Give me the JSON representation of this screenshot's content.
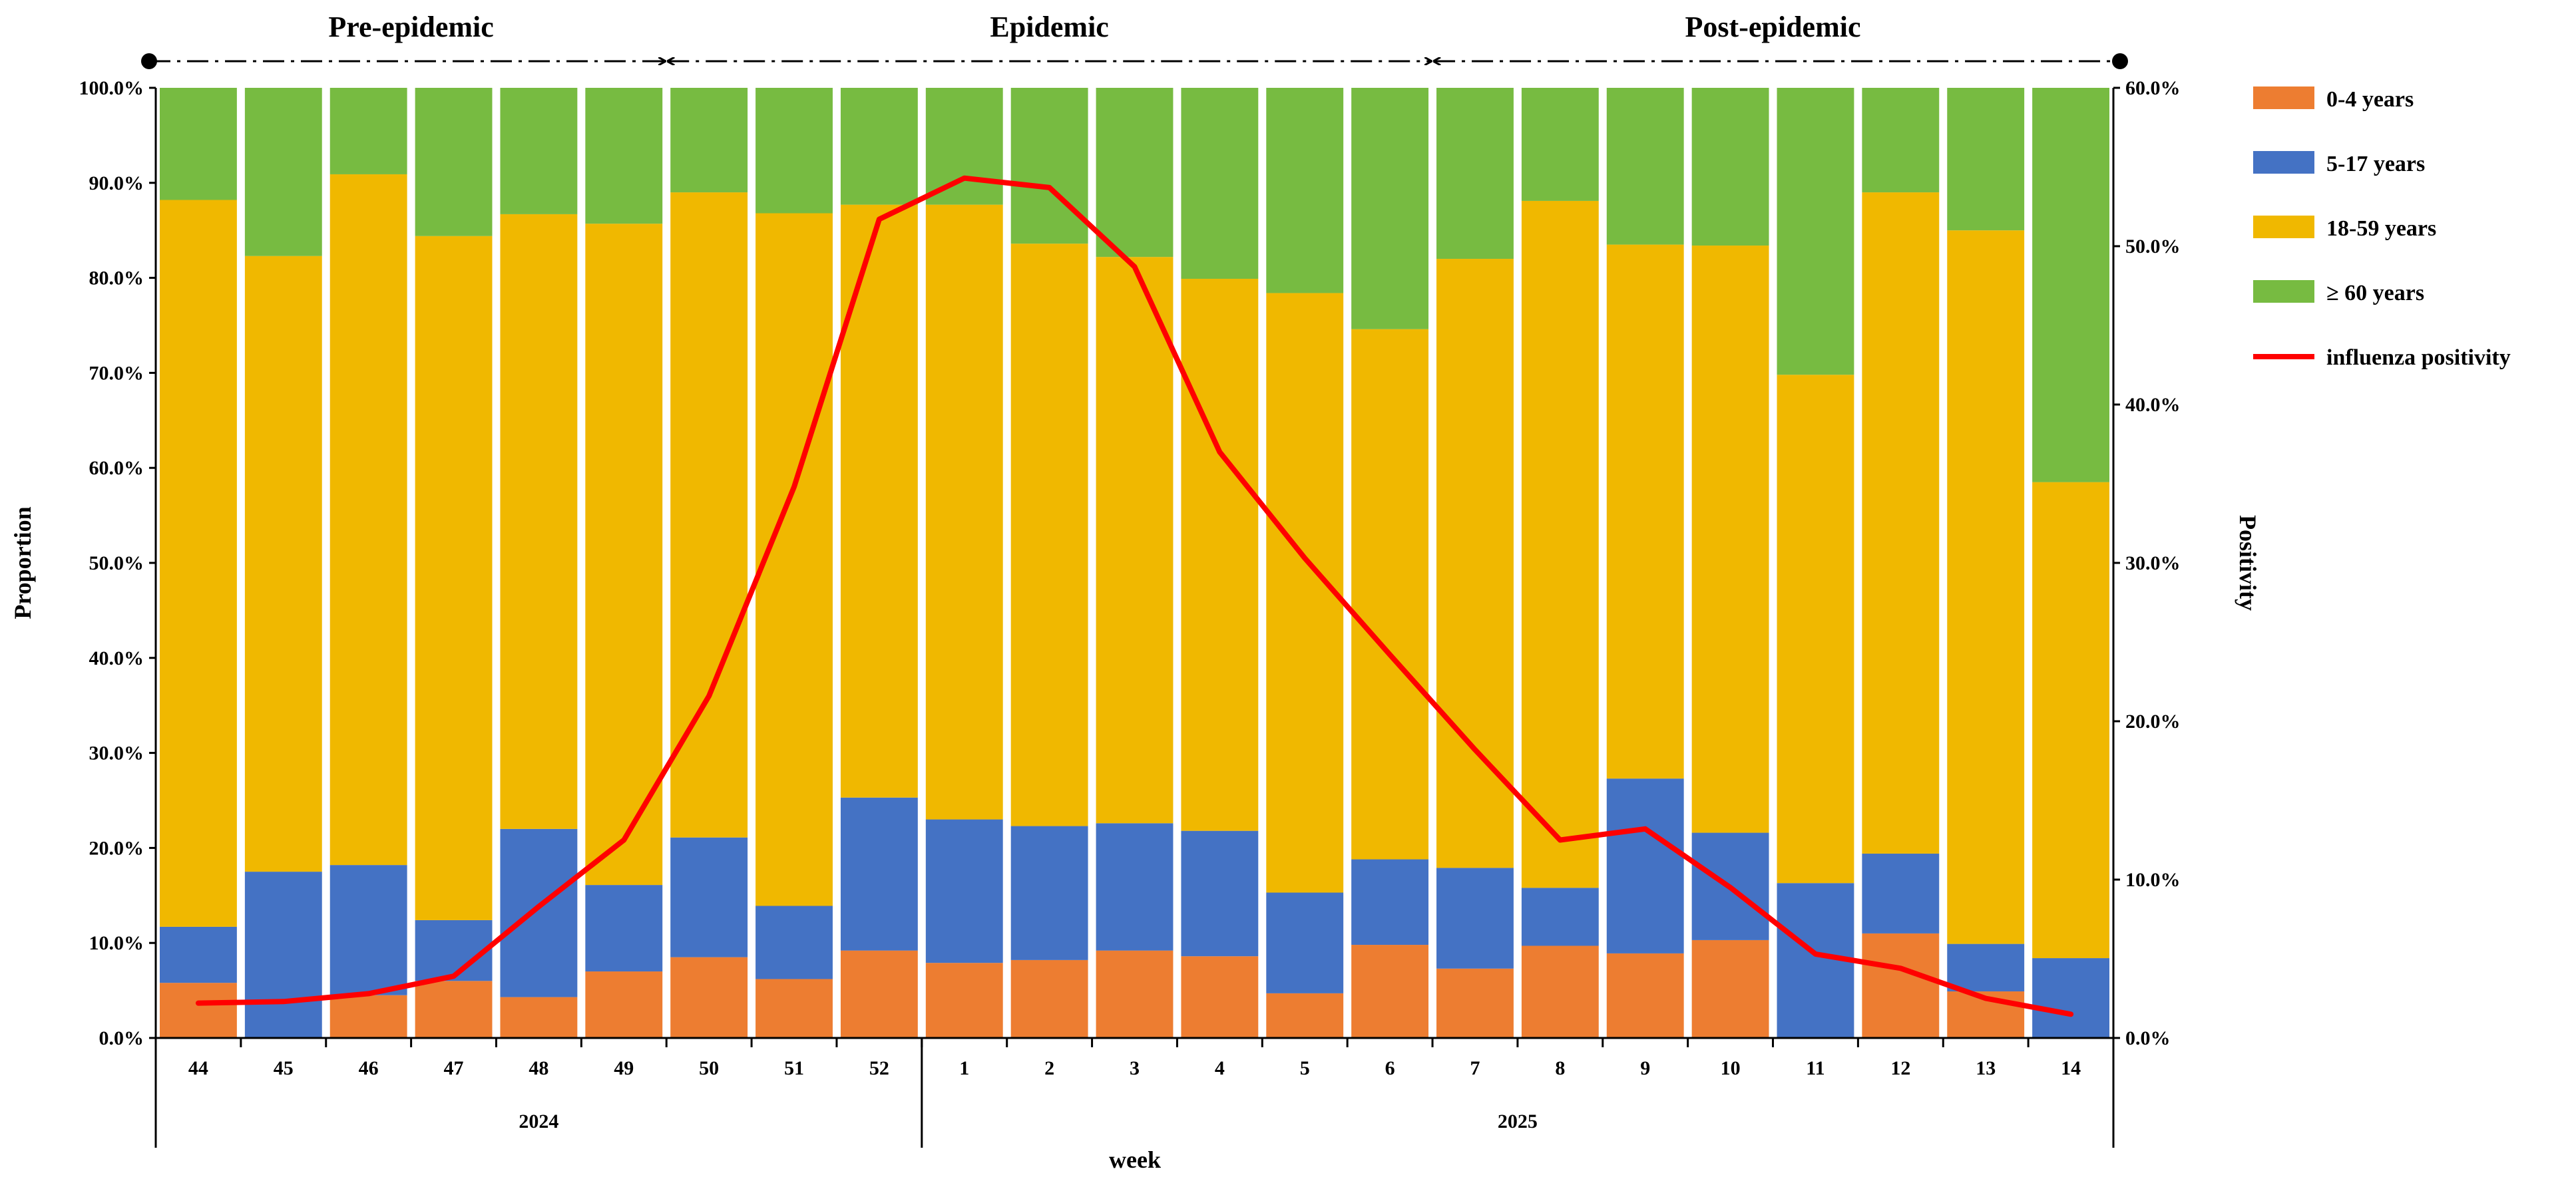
{
  "chart_data": {
    "type": "bar",
    "stacked": true,
    "categories": [
      "44",
      "45",
      "46",
      "47",
      "48",
      "49",
      "50",
      "51",
      "52",
      "1",
      "2",
      "3",
      "4",
      "5",
      "6",
      "7",
      "8",
      "9",
      "10",
      "11",
      "12",
      "13",
      "14"
    ],
    "year_groups": [
      {
        "label": "2024",
        "from": 0,
        "to": 8
      },
      {
        "label": "2025",
        "from": 9,
        "to": 22
      }
    ],
    "xlabel": "week",
    "ylabel": "Proportion",
    "y2label": "Positivity",
    "ylim": [
      0,
      100
    ],
    "y2lim": [
      0,
      60
    ],
    "y_ticks": [
      "0.0%",
      "10.0%",
      "20.0%",
      "30.0%",
      "40.0%",
      "50.0%",
      "60.0%",
      "70.0%",
      "80.0%",
      "90.0%",
      "100.0%"
    ],
    "y2_ticks": [
      "0.0%",
      "10.0%",
      "20.0%",
      "30.0%",
      "40.0%",
      "50.0%",
      "60.0%"
    ],
    "series": [
      {
        "name": "0-4 years",
        "color": "#ed7d31",
        "values": [
          5.8,
          0.0,
          4.5,
          6.0,
          4.3,
          7.0,
          8.5,
          6.2,
          9.2,
          7.9,
          8.2,
          9.2,
          8.6,
          4.7,
          9.8,
          7.3,
          9.7,
          8.9,
          10.3,
          0.0,
          11.0,
          4.9,
          0.0
        ]
      },
      {
        "name": "5-17 years",
        "color": "#4472c4",
        "values": [
          5.9,
          17.5,
          13.7,
          6.4,
          17.7,
          9.1,
          12.6,
          7.7,
          16.1,
          15.1,
          14.1,
          13.4,
          13.2,
          10.6,
          9.0,
          10.6,
          6.1,
          18.4,
          11.3,
          16.3,
          8.4,
          5.0,
          8.4
        ]
      },
      {
        "name": "18-59 years",
        "color": "#f0b800",
        "values": [
          76.5,
          64.8,
          72.7,
          72.0,
          64.7,
          69.6,
          67.9,
          72.9,
          62.4,
          64.7,
          61.3,
          59.6,
          58.1,
          63.1,
          55.8,
          64.1,
          72.3,
          56.2,
          61.8,
          53.5,
          69.6,
          75.1,
          50.1
        ]
      },
      {
        "name": "≥ 60 years",
        "color": "#77bb41",
        "values": [
          11.8,
          17.7,
          9.1,
          15.6,
          13.3,
          14.3,
          11.0,
          13.2,
          12.3,
          12.3,
          16.4,
          17.8,
          20.1,
          21.6,
          25.4,
          18.0,
          11.9,
          16.5,
          16.6,
          30.2,
          11.0,
          15.0,
          41.5
        ]
      }
    ],
    "line": {
      "name": "influenza positivity",
      "color": "#ff0000",
      "axis": "right",
      "values": [
        2.2,
        2.3,
        2.8,
        3.9,
        8.3,
        12.5,
        21.6,
        34.8,
        51.7,
        54.3,
        53.7,
        48.7,
        37.0,
        30.3,
        24.2,
        18.2,
        12.5,
        13.2,
        9.5,
        5.3,
        4.4,
        2.5,
        1.5
      ]
    },
    "phases": [
      {
        "label": "Pre-epidemic",
        "from_week": "44",
        "to_week": "49"
      },
      {
        "label": "Epidemic",
        "from_week": "50",
        "to_week": "6"
      },
      {
        "label": "Post-epidemic",
        "from_week": "7",
        "to_week": "14"
      }
    ],
    "legend_position": "right"
  }
}
